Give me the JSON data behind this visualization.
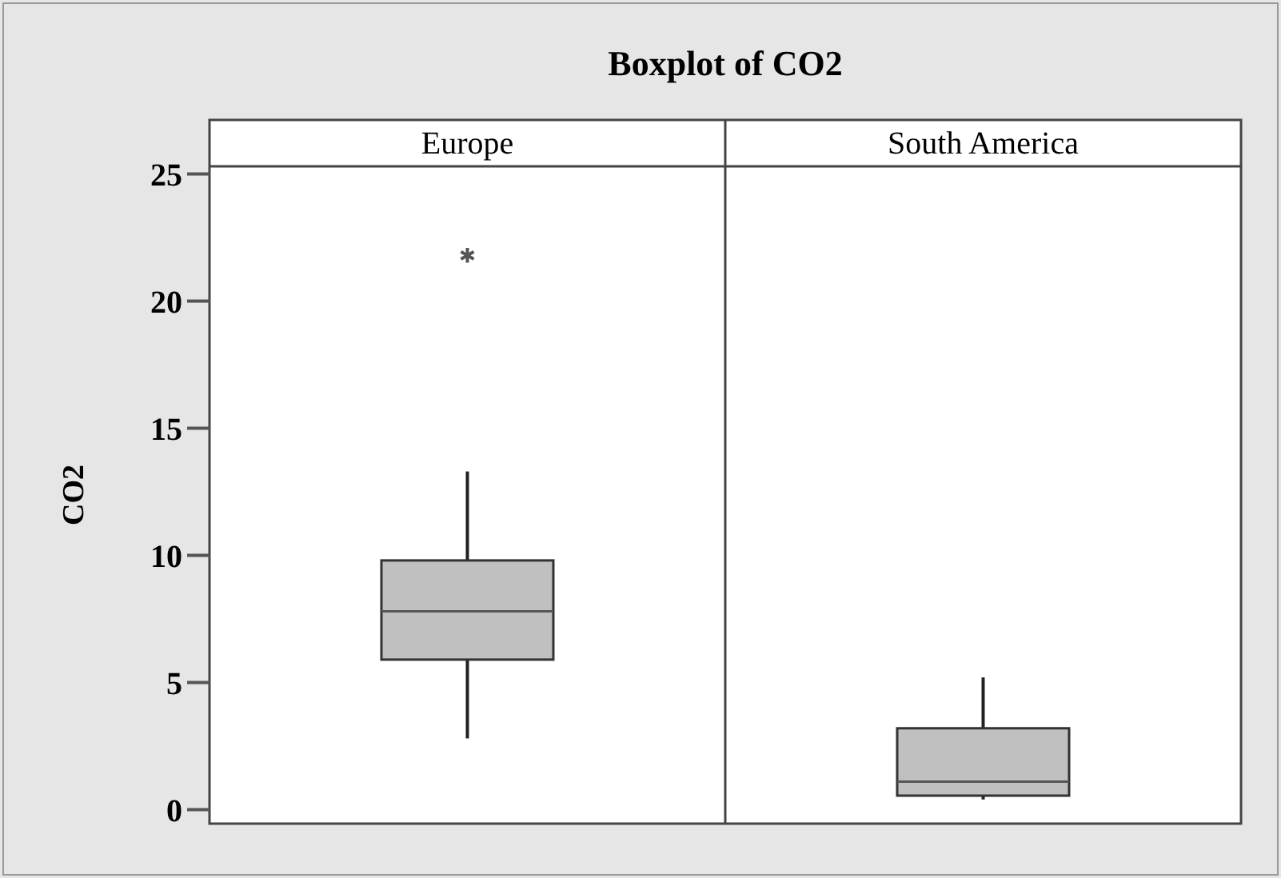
{
  "chart_data": {
    "type": "box",
    "title": "Boxplot of CO2",
    "ylabel": "CO2",
    "categories": [
      "Europe",
      "South America"
    ],
    "boxes": [
      {
        "low": 2.8,
        "q1": 5.9,
        "median": 7.8,
        "q3": 9.8,
        "high": 13.3,
        "outliers": [
          21.8
        ]
      },
      {
        "low": 0.4,
        "q1": 0.55,
        "median": 1.1,
        "q3": 3.2,
        "high": 5.2
      }
    ],
    "color": "#c0c0c0",
    "ylim": [
      -0.55,
      25.3
    ],
    "yticks": [
      0,
      5,
      10,
      15,
      20,
      25
    ],
    "grid": false
  }
}
